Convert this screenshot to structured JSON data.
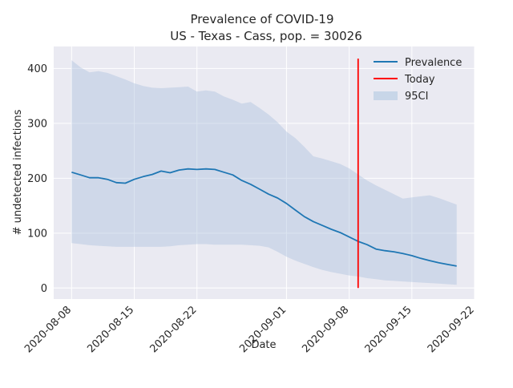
{
  "chart_data": {
    "type": "line",
    "title": "Prevalence of COVID-19",
    "subtitle": "US - Texas - Cass, pop. = 30026",
    "xlabel": "Date",
    "ylabel": "# undetected infections",
    "xlim": [
      "2020-08-06T00:00",
      "2020-09-22T00:00"
    ],
    "ylim": [
      -20,
      440
    ],
    "x_ticks": [
      "2020-08-08",
      "2020-08-15",
      "2020-08-22",
      "2020-09-01",
      "2020-09-08",
      "2020-09-15",
      "2020-09-22"
    ],
    "y_ticks": [
      0,
      100,
      200,
      300,
      400
    ],
    "grid": true,
    "legend_position": "top-right",
    "colors": {
      "background": "#eaeaf2",
      "grid": "#ffffff",
      "prevalence": "#1f77b4",
      "today": "#ff0000",
      "ci_band": "#b0c4de"
    },
    "legend": [
      {
        "label": "Prevalence",
        "kind": "line",
        "color": "#1f77b4"
      },
      {
        "label": "Today",
        "kind": "line",
        "color": "#ff0000"
      },
      {
        "label": "95CI",
        "kind": "patch",
        "color": "#c8d6e8"
      }
    ],
    "today": "2020-09-09",
    "series": [
      {
        "name": "Prevalence",
        "x": [
          "2020-08-08",
          "2020-08-09",
          "2020-08-10",
          "2020-08-11",
          "2020-08-12",
          "2020-08-13",
          "2020-08-14",
          "2020-08-15",
          "2020-08-16",
          "2020-08-17",
          "2020-08-18",
          "2020-08-19",
          "2020-08-20",
          "2020-08-21",
          "2020-08-22",
          "2020-08-23",
          "2020-08-24",
          "2020-08-25",
          "2020-08-26",
          "2020-08-27",
          "2020-08-28",
          "2020-08-29",
          "2020-08-30",
          "2020-08-31",
          "2020-09-01",
          "2020-09-02",
          "2020-09-03",
          "2020-09-04",
          "2020-09-05",
          "2020-09-06",
          "2020-09-07",
          "2020-09-08",
          "2020-09-09",
          "2020-09-10",
          "2020-09-11",
          "2020-09-12",
          "2020-09-13",
          "2020-09-14",
          "2020-09-15",
          "2020-09-16",
          "2020-09-17",
          "2020-09-18",
          "2020-09-19",
          "2020-09-20"
        ],
        "values": [
          211,
          206,
          201,
          201,
          198,
          192,
          191,
          198,
          203,
          207,
          213,
          210,
          215,
          217,
          216,
          217,
          216,
          211,
          206,
          196,
          189,
          180,
          171,
          164,
          154,
          142,
          130,
          121,
          114,
          107,
          101,
          93,
          85,
          79,
          71,
          68,
          66,
          63,
          59,
          54,
          50,
          46,
          43,
          40
        ]
      },
      {
        "name": "95CI",
        "x": [
          "2020-08-08",
          "2020-08-09",
          "2020-08-10",
          "2020-08-11",
          "2020-08-12",
          "2020-08-13",
          "2020-08-14",
          "2020-08-15",
          "2020-08-16",
          "2020-08-17",
          "2020-08-18",
          "2020-08-19",
          "2020-08-20",
          "2020-08-21",
          "2020-08-22",
          "2020-08-23",
          "2020-08-24",
          "2020-08-25",
          "2020-08-26",
          "2020-08-27",
          "2020-08-28",
          "2020-08-29",
          "2020-08-30",
          "2020-08-31",
          "2020-09-01",
          "2020-09-02",
          "2020-09-03",
          "2020-09-04",
          "2020-09-05",
          "2020-09-06",
          "2020-09-07",
          "2020-09-08",
          "2020-09-09",
          "2020-09-10",
          "2020-09-11",
          "2020-09-12",
          "2020-09-13",
          "2020-09-14",
          "2020-09-15",
          "2020-09-16",
          "2020-09-17",
          "2020-09-18",
          "2020-09-19",
          "2020-09-20"
        ],
        "upper": [
          415,
          402,
          393,
          395,
          392,
          386,
          380,
          373,
          368,
          365,
          364,
          365,
          366,
          367,
          358,
          360,
          358,
          349,
          343,
          336,
          339,
          328,
          316,
          302,
          285,
          273,
          257,
          240,
          236,
          231,
          226,
          218,
          207,
          196,
          187,
          179,
          171,
          163,
          165,
          167,
          169,
          164,
          158,
          152
        ],
        "lower": [
          82,
          80,
          78,
          77,
          76,
          75,
          75,
          75,
          75,
          75,
          75,
          76,
          78,
          79,
          80,
          80,
          79,
          79,
          79,
          79,
          78,
          77,
          74,
          66,
          57,
          50,
          44,
          38,
          33,
          29,
          26,
          23,
          21,
          18,
          16,
          14,
          13,
          12,
          11,
          10,
          9,
          8,
          7,
          6
        ]
      }
    ]
  }
}
